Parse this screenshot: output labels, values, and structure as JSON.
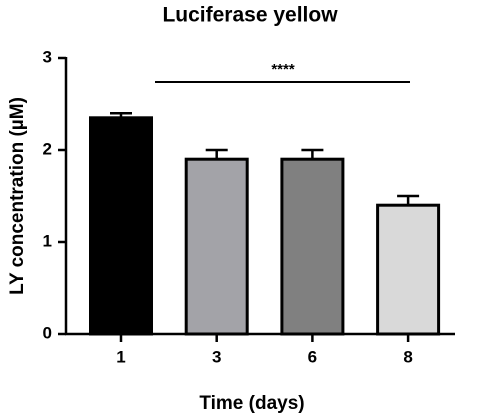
{
  "chart_data": {
    "type": "bar",
    "title": "Luciferase yellow",
    "x_label": "Time (days)",
    "y_label": "LY concentration (µM)",
    "categories": [
      "1",
      "3",
      "6",
      "8"
    ],
    "values": [
      2.35,
      1.9,
      1.9,
      1.4
    ],
    "errors": [
      0.05,
      0.1,
      0.1,
      0.1
    ],
    "colors": [
      "#000000",
      "#a3a3a8",
      "#808080",
      "#d9d9d9"
    ],
    "ylim": [
      0,
      3
    ],
    "yticks": [
      0,
      1,
      2,
      3
    ],
    "annotation": "****"
  }
}
